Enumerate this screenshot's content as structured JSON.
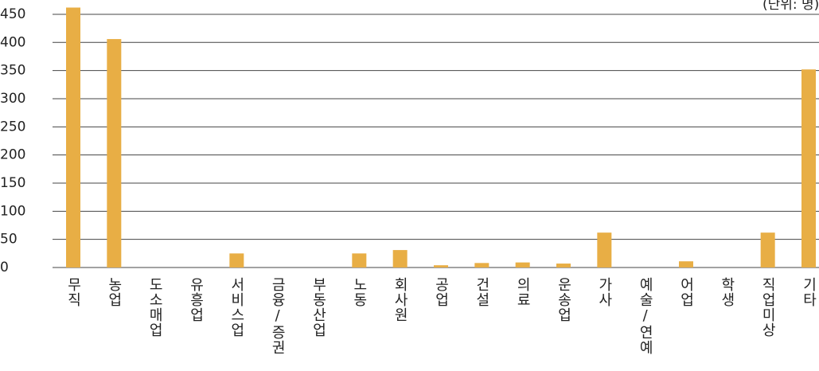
{
  "chart_data": {
    "type": "bar",
    "annotation": "(단위: 명)",
    "categories": [
      "무직",
      "농업",
      "도소매업",
      "유흥업",
      "서비스업",
      "금융/증권",
      "부동산업",
      "노동",
      "회사원",
      "공업",
      "건설",
      "의료",
      "운송업",
      "가사",
      "예술/연예",
      "어업",
      "학생",
      "직업미상",
      "기타"
    ],
    "values": [
      462,
      406,
      0,
      0,
      25,
      0,
      0,
      25,
      31,
      4,
      8,
      9,
      7,
      62,
      0,
      11,
      0,
      62,
      352
    ],
    "color": "#e8ae45",
    "ylim": [
      0,
      475
    ],
    "yticks": [
      0,
      50,
      100,
      150,
      200,
      250,
      300,
      350,
      400,
      450
    ],
    "grid": true
  }
}
